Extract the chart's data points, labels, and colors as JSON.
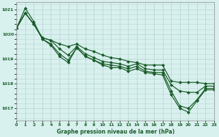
{
  "background_color": "#d8f0ee",
  "grid_color": "#b8d8d4",
  "line_color": "#1a5c2a",
  "xlabel": "Graphe pression niveau de la mer (hPa)",
  "xlim": [
    0,
    23
  ],
  "ylim": [
    1016.5,
    1021.3
  ],
  "yticks": [
    1017,
    1018,
    1019,
    1020,
    1021
  ],
  "xticks": [
    0,
    1,
    2,
    3,
    4,
    5,
    6,
    7,
    8,
    9,
    10,
    11,
    12,
    13,
    14,
    15,
    16,
    17,
    18,
    19,
    20,
    21,
    22,
    23
  ],
  "series": [
    [
      1020.25,
      1020.85,
      1020.4,
      1019.85,
      1019.75,
      1019.6,
      1019.5,
      1019.6,
      1019.4,
      1019.3,
      1019.15,
      1019.05,
      1019.0,
      1018.9,
      1018.85,
      1018.75,
      1018.75,
      1018.75,
      1018.1,
      1018.05,
      1018.05,
      1018.05,
      1018.0,
      1018.0
    ],
    [
      1020.25,
      1020.85,
      1020.4,
      1019.85,
      1019.75,
      1019.4,
      1019.15,
      1019.5,
      1019.2,
      1019.05,
      1018.9,
      1018.85,
      1018.8,
      1018.7,
      1018.8,
      1018.6,
      1018.55,
      1018.55,
      1017.95,
      1017.7,
      1017.65,
      1017.65,
      1017.9,
      1017.9
    ],
    [
      1020.25,
      1020.85,
      1020.4,
      1019.8,
      1019.6,
      1019.2,
      1018.95,
      1019.45,
      1019.1,
      1018.95,
      1018.8,
      1018.75,
      1018.7,
      1018.6,
      1018.7,
      1018.5,
      1018.45,
      1018.45,
      1017.7,
      1017.1,
      1017.0,
      1017.35,
      1017.8,
      1017.8
    ],
    [
      1020.25,
      1021.05,
      1020.5,
      1019.8,
      1019.55,
      1019.1,
      1018.85,
      1019.45,
      1019.1,
      1018.95,
      1018.75,
      1018.65,
      1018.65,
      1018.5,
      1018.6,
      1018.45,
      1018.4,
      1018.35,
      1017.55,
      1017.0,
      1016.85,
      1017.3,
      1017.75,
      1017.75
    ]
  ]
}
